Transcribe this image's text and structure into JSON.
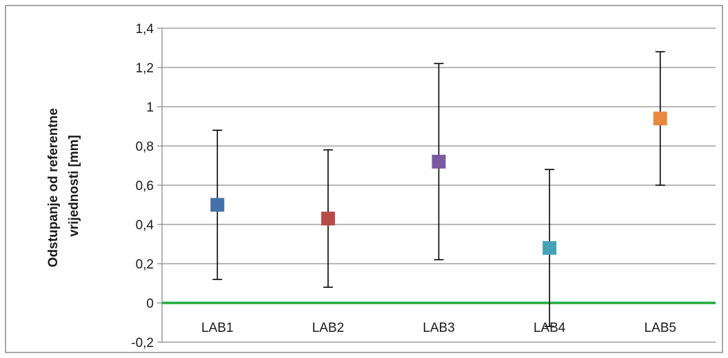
{
  "chart_data": {
    "type": "scatter",
    "title": "",
    "xlabel": "",
    "ylabel_lines": [
      "Odstupanje od referentne",
      "vrijednosti [mm]"
    ],
    "categories": [
      "LAB1",
      "LAB2",
      "LAB3",
      "LAB4",
      "LAB5"
    ],
    "values": [
      0.5,
      0.43,
      0.72,
      0.28,
      0.94
    ],
    "error_low": [
      0.12,
      0.08,
      0.22,
      -0.12,
      0.6
    ],
    "error_high": [
      0.88,
      0.78,
      1.22,
      0.68,
      1.28
    ],
    "marker_colors": [
      "#4472a8",
      "#b54a47",
      "#7a5a9e",
      "#45a2b5",
      "#e8893f"
    ],
    "ylim": [
      -0.2,
      1.4
    ],
    "yticks": [
      -0.2,
      0,
      0.2,
      0.4,
      0.6,
      0.8,
      1,
      1.2,
      1.4
    ],
    "ytick_labels": [
      "-0,2",
      "0",
      "0,2",
      "0,4",
      "0,6",
      "0,8",
      "1",
      "1,2",
      "1,4"
    ],
    "reference_line": {
      "y": 0,
      "color": "#1faa3c"
    },
    "grid": true,
    "grid_color": "#8c8c8c",
    "legend": "none"
  }
}
